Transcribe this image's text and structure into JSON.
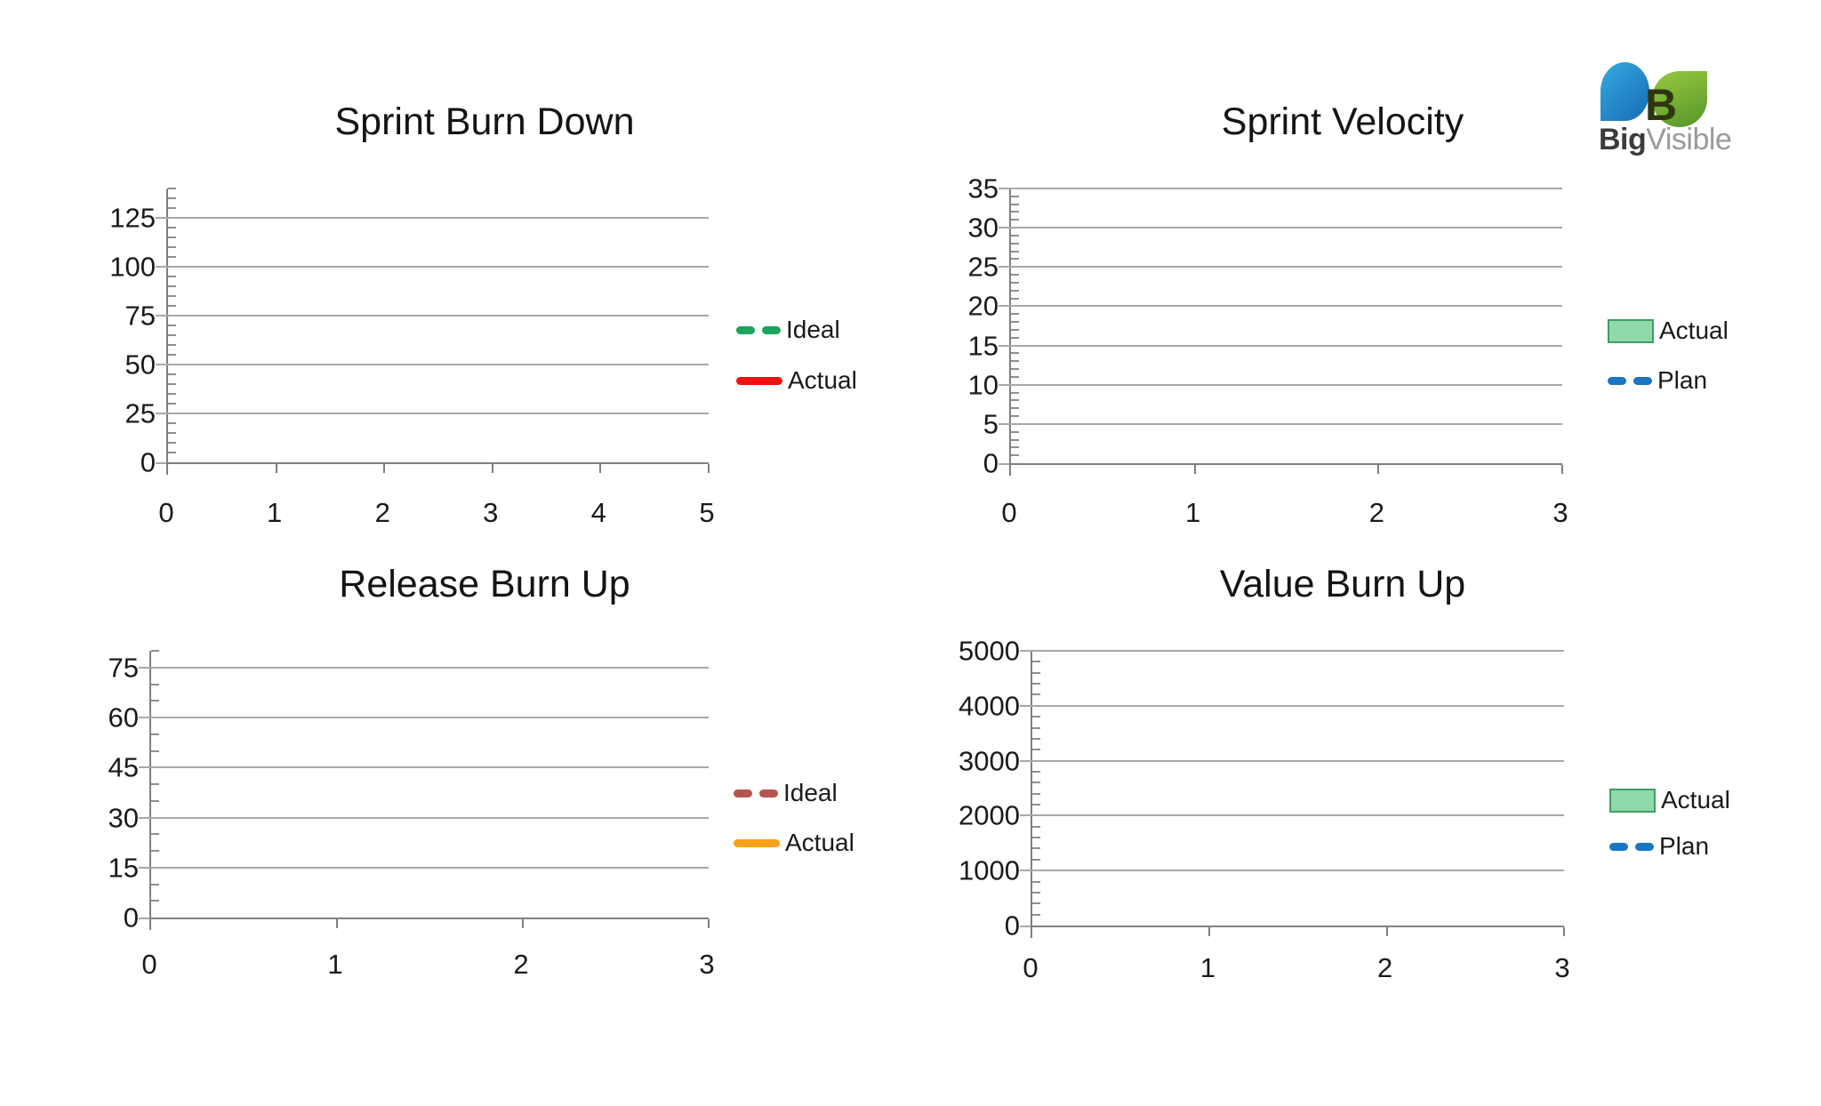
{
  "page": {
    "background": "#FFFFFF",
    "text_color": "#1A1A1A",
    "gridline_color": "#A8A8A8",
    "axis_color": "#7F7F7F"
  },
  "logo": {
    "brand_bold": "Big",
    "brand_light": "Visible",
    "monogram": "B",
    "colors": {
      "leaf_blue": [
        "#36A9E1",
        "#1B75BB"
      ],
      "leaf_green": [
        "#97C83D",
        "#5C9B2E"
      ],
      "monogram": "#2F3512",
      "brand_bold": "#3B3B3B",
      "brand_light": "#9A9A9A"
    }
  },
  "chart_data": [
    {
      "type": "line",
      "title": "Sprint Burn Down",
      "xlabel": "",
      "ylabel": "",
      "x_ticks": [
        0,
        1,
        2,
        3,
        4,
        5
      ],
      "xlim": [
        0,
        5
      ],
      "y_ticks": [
        0,
        25,
        50,
        75,
        100,
        125
      ],
      "ylim": [
        0,
        140
      ],
      "y_minor_step": 5,
      "grid": "horizontal-major",
      "legend_position": "right",
      "series": [
        {
          "name": "Ideal",
          "swatch": "dash",
          "style": "dashed",
          "color": "#1AA45C",
          "values": []
        },
        {
          "name": "Actual",
          "swatch": "line",
          "style": "solid",
          "color": "#EF1111",
          "values": []
        }
      ]
    },
    {
      "type": "bar+line",
      "title": "Sprint Velocity",
      "xlabel": "",
      "ylabel": "",
      "x_ticks": [
        0,
        1,
        2,
        3
      ],
      "xlim": [
        0,
        3
      ],
      "y_ticks": [
        0,
        5,
        10,
        15,
        20,
        25,
        30,
        35
      ],
      "ylim": [
        0,
        35
      ],
      "y_minor_step": 1,
      "grid": "horizontal-major",
      "legend_position": "right",
      "series": [
        {
          "name": "Actual",
          "swatch": "box",
          "style": "bar",
          "color": "#8FD8A8",
          "border_color": "#3D9E63",
          "values": []
        },
        {
          "name": "Plan",
          "swatch": "dash",
          "style": "dashed",
          "color": "#1876C5",
          "values": []
        }
      ]
    },
    {
      "type": "line",
      "title": "Release Burn Up",
      "xlabel": "",
      "ylabel": "",
      "x_ticks": [
        0,
        1,
        2,
        3
      ],
      "xlim": [
        0,
        3
      ],
      "y_ticks": [
        0,
        15,
        30,
        45,
        60,
        75
      ],
      "ylim": [
        0,
        80
      ],
      "y_minor_step": 5,
      "grid": "horizontal-major",
      "legend_position": "right",
      "series": [
        {
          "name": "Ideal",
          "swatch": "dash",
          "style": "dashed",
          "color": "#B5544F",
          "values": []
        },
        {
          "name": "Actual",
          "swatch": "line",
          "style": "solid",
          "color": "#F9A11B",
          "values": []
        }
      ]
    },
    {
      "type": "bar+line",
      "title": "Value Burn Up",
      "xlabel": "",
      "ylabel": "",
      "x_ticks": [
        0,
        1,
        2,
        3
      ],
      "xlim": [
        0,
        3
      ],
      "y_ticks": [
        0,
        1000,
        2000,
        3000,
        4000,
        5000
      ],
      "ylim": [
        0,
        5000
      ],
      "y_minor_step": 200,
      "grid": "horizontal-major",
      "legend_position": "right",
      "series": [
        {
          "name": "Actual",
          "swatch": "box",
          "style": "bar",
          "color": "#8FD8A8",
          "border_color": "#3D9E63",
          "values": []
        },
        {
          "name": "Plan",
          "swatch": "dash",
          "style": "dashed",
          "color": "#1876C5",
          "values": []
        }
      ]
    }
  ]
}
